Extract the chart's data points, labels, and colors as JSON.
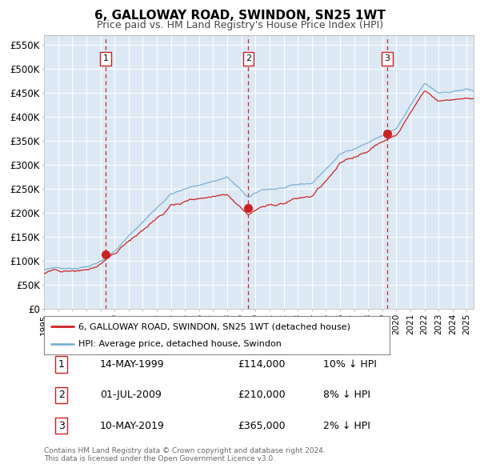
{
  "title": "6, GALLOWAY ROAD, SWINDON, SN25 1WT",
  "subtitle": "Price paid vs. HM Land Registry's House Price Index (HPI)",
  "ylim": [
    0,
    570000
  ],
  "yticks": [
    0,
    50000,
    100000,
    150000,
    200000,
    250000,
    300000,
    350000,
    400000,
    450000,
    500000,
    550000
  ],
  "ytick_labels": [
    "£0",
    "£50K",
    "£100K",
    "£150K",
    "£200K",
    "£250K",
    "£300K",
    "£350K",
    "£400K",
    "£450K",
    "£500K",
    "£550K"
  ],
  "xlim_start": 1995.0,
  "xlim_end": 2025.5,
  "background_color": "#ffffff",
  "plot_bg_color": "#dce9f5",
  "grid_color": "#ffffff",
  "hpi_line_color": "#7ab0d4",
  "price_line_color": "#cc2222",
  "marker_color": "#cc2222",
  "vline_color": "#cc2222",
  "transactions": [
    {
      "num": 1,
      "date_x": 1999.37,
      "price": 114000,
      "label": "1",
      "date_str": "14-MAY-1999",
      "price_str": "£114,000",
      "hpi_str": "10% ↓ HPI"
    },
    {
      "num": 2,
      "date_x": 2009.5,
      "price": 210000,
      "label": "2",
      "date_str": "01-JUL-2009",
      "price_str": "£210,000",
      "hpi_str": "8% ↓ HPI"
    },
    {
      "num": 3,
      "date_x": 2019.36,
      "price": 365000,
      "label": "3",
      "date_str": "10-MAY-2019",
      "price_str": "£365,000",
      "hpi_str": "2% ↓ HPI"
    }
  ],
  "legend_line1": "6, GALLOWAY ROAD, SWINDON, SN25 1WT (detached house)",
  "legend_line2": "HPI: Average price, detached house, Swindon",
  "footnote": "Contains HM Land Registry data © Crown copyright and database right 2024.\nThis data is licensed under the Open Government Licence v3.0.",
  "table_rows": [
    [
      "1",
      "14-MAY-1999",
      "£114,000",
      "10% ↓ HPI"
    ],
    [
      "2",
      "01-JUL-2009",
      "£210,000",
      "8% ↓ HPI"
    ],
    [
      "3",
      "10-MAY-2019",
      "£365,000",
      "2% ↓ HPI"
    ]
  ]
}
